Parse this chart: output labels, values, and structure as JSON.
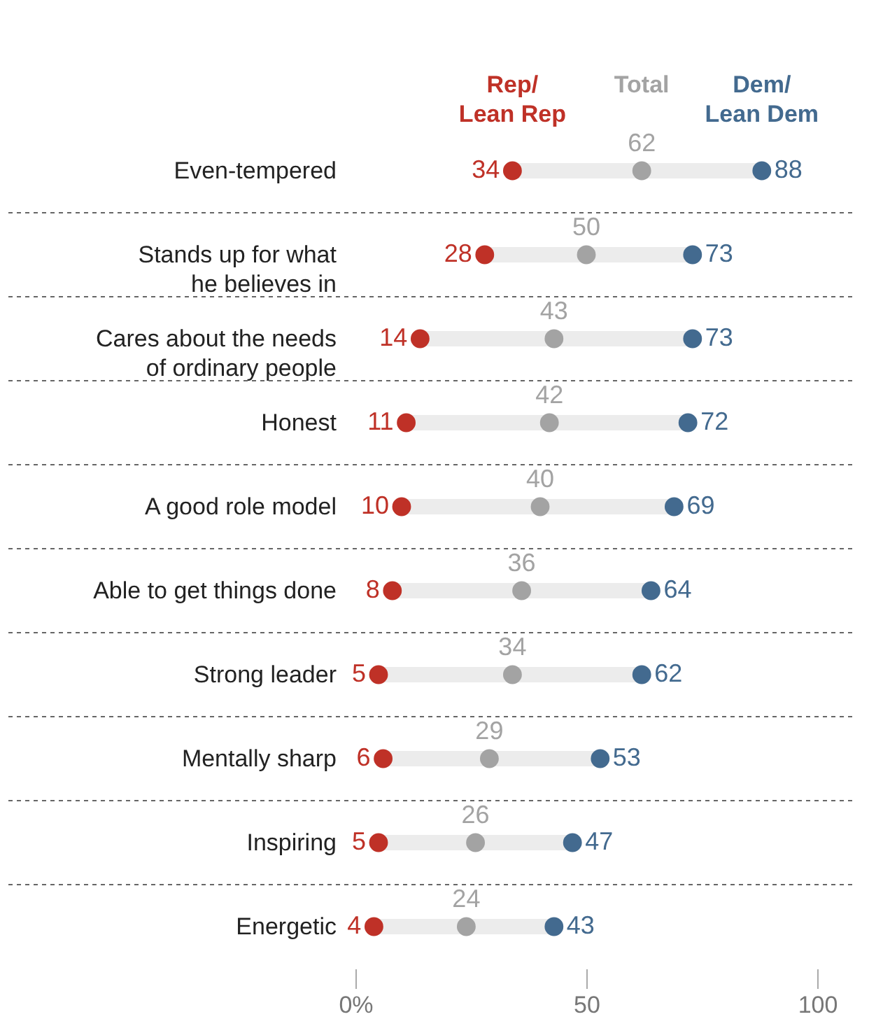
{
  "chart_data": {
    "type": "scatter",
    "orientation": "horizontal",
    "categories": [
      "Even-tempered",
      "Stands up for what he believes in",
      "Cares about the needs of ordinary people",
      "Honest",
      "A good role model",
      "Able to get things done",
      "Strong leader",
      "Mentally sharp",
      "Inspiring",
      "Energetic"
    ],
    "series": [
      {
        "name": "Rep/ Lean Rep",
        "color": "#bf3127",
        "values": [
          34,
          28,
          14,
          11,
          10,
          8,
          5,
          6,
          5,
          4
        ]
      },
      {
        "name": "Total",
        "color": "#a3a3a3",
        "values": [
          62,
          50,
          43,
          42,
          40,
          36,
          34,
          29,
          26,
          24
        ]
      },
      {
        "name": "Dem/ Lean Dem",
        "color": "#436a8f",
        "values": [
          88,
          73,
          73,
          72,
          69,
          64,
          62,
          53,
          47,
          43
        ]
      }
    ],
    "xlim": [
      0,
      100
    ],
    "xticks": [
      {
        "value": 0,
        "label": "0%"
      },
      50,
      100
    ],
    "data_labels": true,
    "legend": "top",
    "grid": "y",
    "marker": "circle"
  }
}
